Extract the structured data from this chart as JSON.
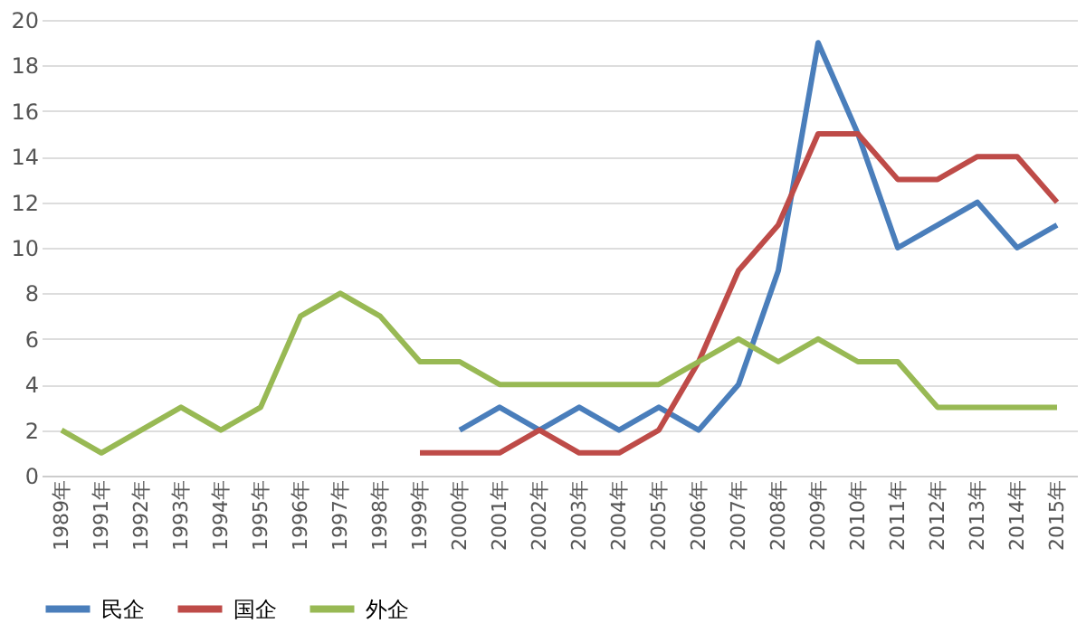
{
  "chart_data": {
    "type": "line",
    "categories": [
      "1989年",
      "1991年",
      "1992年",
      "1993年",
      "1994年",
      "1995年",
      "1996年",
      "1997年",
      "1998年",
      "1999年",
      "2000年",
      "2001年",
      "2002年",
      "2003年",
      "2004年",
      "2005年",
      "2006年",
      "2007年",
      "2008年",
      "2009年",
      "2010年",
      "2011年",
      "2012年",
      "2013年",
      "2014年",
      "2015年"
    ],
    "series": [
      {
        "name": "民企",
        "color": "#4a7ebb",
        "values": [
          null,
          null,
          null,
          null,
          null,
          null,
          null,
          null,
          null,
          null,
          2,
          3,
          2,
          3,
          2,
          3,
          2,
          4,
          9,
          19,
          15,
          10,
          11,
          12,
          10,
          11
        ]
      },
      {
        "name": "国企",
        "color": "#be4b48",
        "values": [
          null,
          null,
          null,
          null,
          null,
          null,
          null,
          null,
          null,
          1,
          1,
          1,
          2,
          1,
          1,
          2,
          5,
          9,
          11,
          15,
          15,
          13,
          13,
          14,
          14,
          12
        ]
      },
      {
        "name": "外企",
        "color": "#98b954",
        "values": [
          2,
          1,
          2,
          3,
          2,
          3,
          7,
          8,
          7,
          5,
          5,
          4,
          4,
          4,
          4,
          4,
          5,
          6,
          5,
          6,
          5,
          5,
          3,
          3,
          3,
          3
        ]
      }
    ],
    "ylim": [
      0,
      20
    ],
    "yticks": [
      0,
      2,
      4,
      6,
      8,
      10,
      12,
      14,
      16,
      18,
      20
    ],
    "grid": "y",
    "legend": "bottom",
    "marker": "none",
    "line_style": "solid"
  }
}
